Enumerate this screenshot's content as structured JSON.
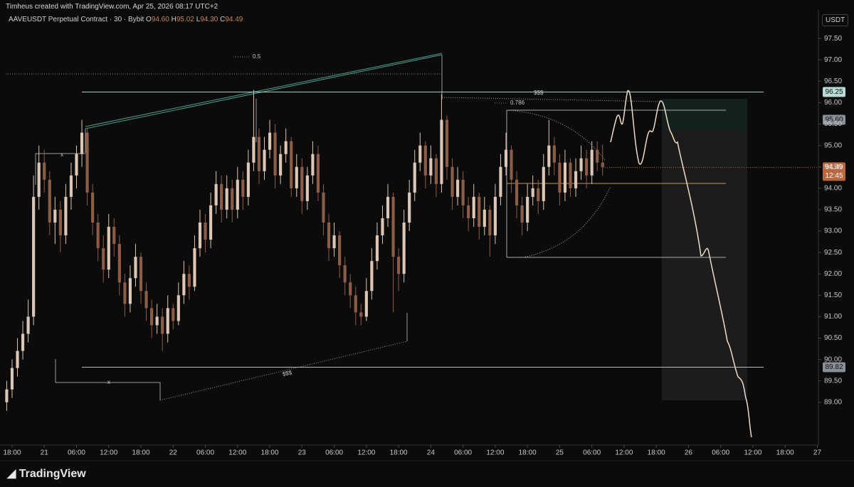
{
  "header": {
    "credit": "Timheus created with TradingView.com, Apr 25, 2026 08:17 UTC+2",
    "symbol": "AAVEUSDT Perpetual Contract · 30 · Bybit",
    "ohlc": [
      {
        "label": "O",
        "value": "94.60"
      },
      {
        "label": "H",
        "value": "95.02"
      },
      {
        "label": "L",
        "value": "94.30"
      },
      {
        "label": "C",
        "value": "94.49"
      }
    ],
    "currency": "USDT",
    "logo": "TradingView"
  },
  "chart_data": {
    "type": "candlestick",
    "up_color": "#dcc6b6",
    "down_color": "#8d5c47",
    "xlim": [
      -2.25,
      150.2
    ],
    "ylim": [
      88.0,
      98.4
    ],
    "xticks": [
      {
        "value": 0,
        "label": "18:00"
      },
      {
        "value": 6,
        "label": "21"
      },
      {
        "value": 12,
        "label": "06:00"
      },
      {
        "value": 18,
        "label": "12:00"
      },
      {
        "value": 24,
        "label": "18:00"
      },
      {
        "value": 30,
        "label": "22"
      },
      {
        "value": 36,
        "label": "06:00"
      },
      {
        "value": 42,
        "label": "12:00"
      },
      {
        "value": 48,
        "label": "18:00"
      },
      {
        "value": 54,
        "label": "23"
      },
      {
        "value": 60,
        "label": "06:00"
      },
      {
        "value": 66,
        "label": "12:00"
      },
      {
        "value": 72,
        "label": "18:00"
      },
      {
        "value": 78,
        "label": "24"
      },
      {
        "value": 84,
        "label": "06:00"
      },
      {
        "value": 90,
        "label": "12:00"
      },
      {
        "value": 96,
        "label": "18:00"
      },
      {
        "value": 102,
        "label": "25"
      },
      {
        "value": 108,
        "label": "06:00"
      },
      {
        "value": 114,
        "label": "12:00"
      },
      {
        "value": 120,
        "label": "18:00"
      },
      {
        "value": 126,
        "label": "26"
      },
      {
        "value": 132,
        "label": "06:00"
      },
      {
        "value": 138,
        "label": "12:00"
      },
      {
        "value": 144,
        "label": "18:00"
      },
      {
        "value": 150,
        "label": "27"
      }
    ],
    "yticks": [
      {
        "value": 89,
        "label": "89.00"
      },
      {
        "value": 89.5,
        "label": "89.50"
      },
      {
        "value": 90,
        "label": "90.00"
      },
      {
        "value": 90.5,
        "label": "90.50"
      },
      {
        "value": 91,
        "label": "91.00"
      },
      {
        "value": 91.5,
        "label": "91.50"
      },
      {
        "value": 92,
        "label": "92.00"
      },
      {
        "value": 92.5,
        "label": "92.50"
      },
      {
        "value": 93,
        "label": "93.00"
      },
      {
        "value": 93.5,
        "label": "93.50"
      },
      {
        "value": 94,
        "label": "94.00"
      },
      {
        "value": 94.5,
        "label": "94.50"
      },
      {
        "value": 95,
        "label": "95.00"
      },
      {
        "value": 95.5,
        "label": "95.50"
      },
      {
        "value": 96,
        "label": "96.00"
      },
      {
        "value": 96.5,
        "label": "96.50"
      },
      {
        "value": 97,
        "label": "97.00"
      },
      {
        "value": 97.5,
        "label": "97.50"
      }
    ],
    "levels": [
      {
        "value": 96.25,
        "label": "96.25",
        "color": "#b9ddd6"
      },
      {
        "value": 95.6,
        "label": "95.60",
        "color": "#8a8f99"
      },
      {
        "value": 89.82,
        "label": "89.82",
        "color": "#8a8f99"
      }
    ],
    "last_price": {
      "value": 94.49,
      "label": "94.49",
      "countdown": "12:45",
      "color": "#b8673e"
    },
    "annotations": [
      "0.5",
      "$$$",
      "0.786",
      "$$$",
      "x",
      "x"
    ],
    "candles": [
      [
        -1,
        89.0,
        89.5,
        88.8,
        89.3
      ],
      [
        0,
        89.3,
        90.0,
        89.1,
        89.8
      ],
      [
        1,
        89.8,
        90.5,
        89.6,
        90.2
      ],
      [
        2,
        90.2,
        90.9,
        90.0,
        90.6
      ],
      [
        3,
        90.6,
        91.4,
        90.4,
        91.0
      ],
      [
        4,
        91.0,
        94.3,
        90.8,
        93.8
      ],
      [
        5,
        93.8,
        95.0,
        93.5,
        94.6
      ],
      [
        6,
        94.6,
        94.9,
        93.9,
        94.2
      ],
      [
        7,
        94.2,
        94.4,
        92.9,
        93.2
      ],
      [
        8,
        93.2,
        93.8,
        92.7,
        93.5
      ],
      [
        9,
        93.5,
        93.7,
        92.5,
        92.9
      ],
      [
        10,
        92.9,
        94.1,
        92.7,
        93.8
      ],
      [
        11,
        93.8,
        94.6,
        93.5,
        94.3
      ],
      [
        12,
        94.3,
        95.0,
        94.0,
        94.8
      ],
      [
        13,
        94.8,
        95.6,
        94.5,
        95.3
      ],
      [
        14,
        95.3,
        95.4,
        93.6,
        93.9
      ],
      [
        15,
        93.9,
        94.1,
        92.9,
        93.2
      ],
      [
        16,
        93.2,
        93.4,
        92.3,
        92.6
      ],
      [
        17,
        92.6,
        92.9,
        91.8,
        92.1
      ],
      [
        18,
        92.1,
        93.4,
        91.9,
        93.1
      ],
      [
        19,
        93.1,
        93.3,
        92.4,
        92.7
      ],
      [
        20,
        92.7,
        92.9,
        91.5,
        91.8
      ],
      [
        21,
        91.8,
        92.0,
        91.0,
        91.3
      ],
      [
        22,
        91.3,
        92.2,
        91.1,
        91.9
      ],
      [
        23,
        91.9,
        92.7,
        91.7,
        92.4
      ],
      [
        24,
        92.4,
        92.5,
        91.3,
        91.6
      ],
      [
        25,
        91.6,
        91.8,
        90.9,
        91.2
      ],
      [
        26,
        91.2,
        91.4,
        90.5,
        90.8
      ],
      [
        27,
        90.8,
        91.3,
        90.6,
        91.0
      ],
      [
        28,
        91.0,
        91.2,
        90.2,
        90.6
      ],
      [
        29,
        90.6,
        91.5,
        90.4,
        91.2
      ],
      [
        30,
        91.2,
        91.3,
        90.7,
        90.9
      ],
      [
        31,
        90.9,
        91.8,
        90.8,
        91.5
      ],
      [
        32,
        91.5,
        92.3,
        91.3,
        92.0
      ],
      [
        33,
        92.0,
        92.2,
        91.4,
        91.7
      ],
      [
        34,
        91.7,
        92.9,
        91.6,
        92.6
      ],
      [
        35,
        92.6,
        93.5,
        92.4,
        93.2
      ],
      [
        36,
        93.2,
        93.4,
        92.5,
        92.8
      ],
      [
        37,
        92.8,
        93.9,
        92.6,
        93.6
      ],
      [
        38,
        93.6,
        94.4,
        93.4,
        94.1
      ],
      [
        39,
        94.1,
        94.3,
        93.2,
        93.5
      ],
      [
        40,
        93.5,
        94.3,
        93.3,
        94.0
      ],
      [
        41,
        94.0,
        94.2,
        93.2,
        93.5
      ],
      [
        42,
        93.5,
        94.5,
        93.3,
        94.2
      ],
      [
        43,
        94.2,
        94.4,
        93.5,
        93.8
      ],
      [
        44,
        93.8,
        94.9,
        93.6,
        94.6
      ],
      [
        45,
        94.6,
        96.3,
        94.4,
        95.2
      ],
      [
        46,
        95.2,
        95.4,
        94.1,
        94.4
      ],
      [
        47,
        94.4,
        95.2,
        94.2,
        94.9
      ],
      [
        48,
        94.9,
        95.6,
        94.7,
        95.3
      ],
      [
        49,
        95.3,
        95.5,
        94.0,
        94.3
      ],
      [
        50,
        94.3,
        95.0,
        94.1,
        94.8
      ],
      [
        51,
        94.8,
        95.4,
        94.6,
        95.1
      ],
      [
        52,
        95.1,
        95.2,
        93.8,
        94.0
      ],
      [
        53,
        94.0,
        94.8,
        93.8,
        94.5
      ],
      [
        54,
        94.5,
        94.7,
        93.4,
        93.7
      ],
      [
        55,
        93.7,
        94.5,
        93.5,
        94.3
      ],
      [
        56,
        94.3,
        95.1,
        94.1,
        94.8
      ],
      [
        57,
        94.8,
        95.0,
        93.7,
        93.9
      ],
      [
        58,
        93.9,
        94.1,
        92.9,
        93.2
      ],
      [
        59,
        93.2,
        93.4,
        92.3,
        92.6
      ],
      [
        60,
        92.6,
        93.2,
        92.4,
        92.9
      ],
      [
        61,
        92.9,
        93.0,
        91.9,
        92.2
      ],
      [
        62,
        92.2,
        92.4,
        91.5,
        91.8
      ],
      [
        63,
        91.8,
        92.0,
        91.2,
        91.5
      ],
      [
        64,
        91.5,
        91.7,
        90.8,
        91.1
      ],
      [
        65,
        91.1,
        91.3,
        90.8,
        91.0
      ],
      [
        66,
        91.0,
        91.9,
        90.9,
        91.6
      ],
      [
        67,
        91.6,
        92.6,
        91.4,
        92.3
      ],
      [
        68,
        92.3,
        93.2,
        92.1,
        92.9
      ],
      [
        69,
        92.9,
        93.6,
        92.7,
        93.3
      ],
      [
        70,
        93.3,
        94.1,
        93.1,
        93.8
      ],
      [
        71,
        93.8,
        93.9,
        91.1,
        92.4
      ],
      [
        72,
        92.4,
        92.6,
        91.6,
        92.0
      ],
      [
        73,
        92.0,
        93.5,
        91.8,
        93.2
      ],
      [
        74,
        93.2,
        94.2,
        93.0,
        93.9
      ],
      [
        75,
        93.9,
        94.9,
        93.7,
        94.6
      ],
      [
        76,
        94.6,
        95.3,
        94.4,
        95.0
      ],
      [
        77,
        95.0,
        95.1,
        94.0,
        94.3
      ],
      [
        78,
        94.3,
        95.0,
        94.1,
        94.7
      ],
      [
        79,
        94.7,
        94.8,
        93.8,
        94.1
      ],
      [
        80,
        94.1,
        96.2,
        93.9,
        95.6
      ],
      [
        81,
        95.6,
        95.7,
        94.2,
        94.5
      ],
      [
        82,
        94.5,
        94.7,
        93.5,
        93.8
      ],
      [
        83,
        93.8,
        94.5,
        93.6,
        94.2
      ],
      [
        84,
        94.2,
        94.4,
        93.3,
        93.6
      ],
      [
        85,
        93.6,
        93.8,
        93.0,
        93.3
      ],
      [
        86,
        93.3,
        94.1,
        93.1,
        93.8
      ],
      [
        87,
        93.8,
        93.9,
        92.8,
        93.1
      ],
      [
        88,
        93.1,
        93.8,
        92.9,
        93.5
      ],
      [
        89,
        93.5,
        93.6,
        92.4,
        92.9
      ],
      [
        90,
        92.9,
        94.1,
        92.7,
        93.8
      ],
      [
        91,
        93.8,
        94.8,
        93.6,
        94.5
      ],
      [
        92,
        94.5,
        95.3,
        94.3,
        94.9
      ],
      [
        93,
        94.9,
        95.0,
        93.9,
        94.2
      ],
      [
        94,
        94.2,
        94.4,
        93.3,
        93.6
      ],
      [
        95,
        93.6,
        93.8,
        92.9,
        93.2
      ],
      [
        96,
        93.2,
        94.1,
        93.0,
        93.8
      ],
      [
        97,
        93.8,
        94.3,
        93.6,
        94.0
      ],
      [
        98,
        94.0,
        94.2,
        93.4,
        93.7
      ],
      [
        99,
        93.7,
        94.8,
        93.5,
        94.5
      ],
      [
        100,
        94.5,
        95.6,
        94.3,
        95.0
      ],
      [
        101,
        95.0,
        95.2,
        94.3,
        94.6
      ],
      [
        102,
        94.6,
        94.8,
        93.6,
        93.9
      ],
      [
        103,
        93.9,
        94.9,
        93.7,
        94.6
      ],
      [
        104,
        94.6,
        94.7,
        93.8,
        94.0
      ],
      [
        105,
        94.0,
        94.7,
        93.8,
        94.4
      ],
      [
        106,
        94.4,
        95.0,
        94.2,
        94.7
      ],
      [
        107,
        94.7,
        94.9,
        94.0,
        94.3
      ],
      [
        108,
        94.3,
        95.1,
        94.1,
        94.9
      ],
      [
        109,
        94.9,
        95.1,
        94.4,
        94.6
      ],
      [
        110,
        94.6,
        95.02,
        94.3,
        94.49
      ]
    ]
  }
}
